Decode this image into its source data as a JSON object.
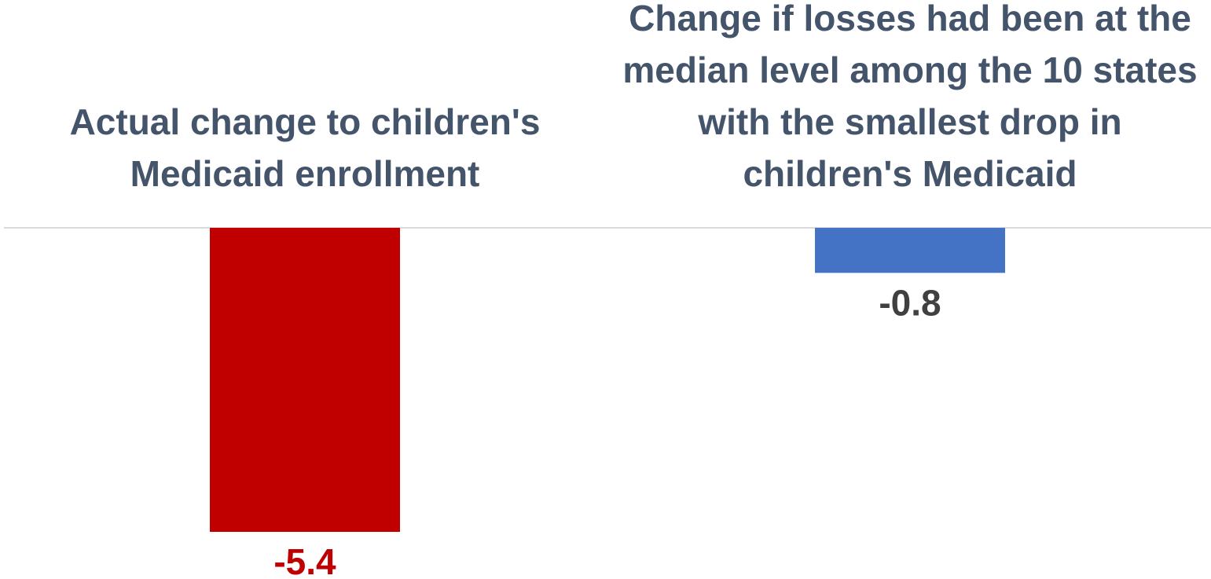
{
  "chart_data": {
    "type": "bar",
    "categories": [
      [
        "Actual change to children's",
        "Medicaid enrollment"
      ],
      [
        "Change if losses had been at the",
        "median level among the 10 states",
        "with the smallest drop in",
        "children's Medicaid"
      ]
    ],
    "values": [
      -5.4,
      -0.8
    ],
    "value_labels": [
      "-5.4",
      "-0.8"
    ],
    "ylim": [
      -5.4,
      0
    ],
    "grid": false,
    "legend": "none",
    "colors": {
      "bars": [
        "#C00000",
        "#4472C4"
      ],
      "value_labels": [
        "#C00000",
        "#404040"
      ],
      "category_labels": "#44546A",
      "axis_line": "#D9D9D9"
    }
  }
}
